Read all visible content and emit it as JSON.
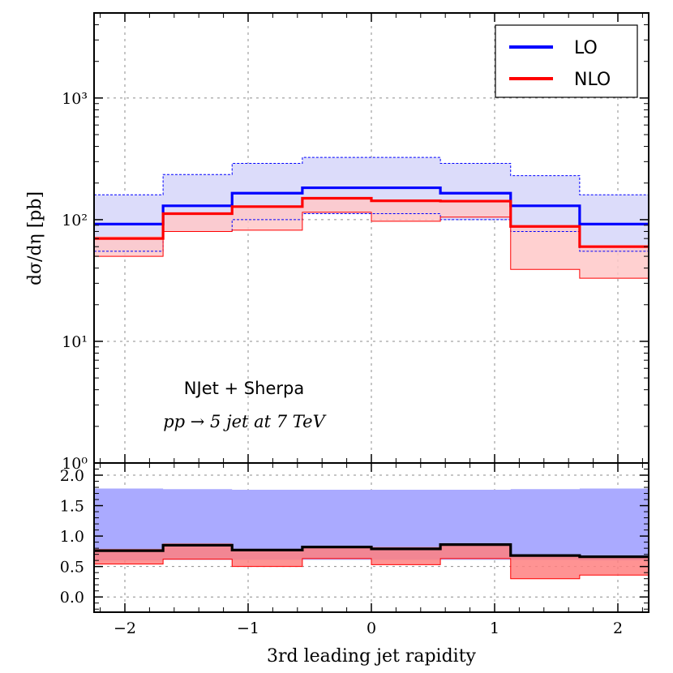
{
  "chart_data": [
    {
      "type": "line",
      "panel": "main",
      "step": true,
      "bin_edges": [
        -2.25,
        -1.69,
        -1.13,
        -0.56,
        0.0,
        0.56,
        1.13,
        1.69,
        2.25
      ],
      "ylabel": "dσ/dη [pb]",
      "yscale": "log",
      "ylim": [
        1,
        5000
      ],
      "ytick_labels": [
        "10⁰",
        "10¹",
        "10²",
        "10³"
      ],
      "grid": true,
      "legend_position": "top-right",
      "annotation_line1": "NJet + Sherpa",
      "annotation_line2": "pp → 5 jet at 7 TeV",
      "series": [
        {
          "name": "LO",
          "color": "#0000ff",
          "values": [
            92,
            130,
            165,
            183,
            183,
            165,
            130,
            92
          ],
          "band_low": [
            55,
            80,
            100,
            112,
            112,
            100,
            80,
            55
          ],
          "band_high": [
            160,
            235,
            290,
            325,
            325,
            290,
            230,
            160
          ],
          "band_color": "#dcdcfa"
        },
        {
          "name": "NLO",
          "color": "#ff0000",
          "values": [
            70,
            112,
            128,
            150,
            143,
            142,
            88,
            60
          ],
          "band_low": [
            50,
            80,
            82,
            115,
            97,
            105,
            39,
            33
          ],
          "band_high": [
            73,
            115,
            130,
            152,
            146,
            145,
            90,
            62
          ],
          "band_color": "#ffc8c8"
        }
      ]
    },
    {
      "type": "line",
      "panel": "ratio",
      "step": true,
      "bin_edges": [
        -2.25,
        -1.69,
        -1.13,
        -0.56,
        0.0,
        0.56,
        1.13,
        1.69,
        2.25
      ],
      "xlabel": "3rd leading jet rapidity",
      "xlim": [
        -2.25,
        2.25
      ],
      "xtick_labels": [
        "−2",
        "−1",
        "0",
        "1",
        "2"
      ],
      "ylim": [
        -0.25,
        2.2
      ],
      "ytick_labels": [
        "0.0",
        "0.5",
        "1.0",
        "1.5",
        "2.0"
      ],
      "grid": true,
      "series": [
        {
          "name": "LO band",
          "color": "#aaaaff",
          "band_low": [
            0.6,
            0.61,
            0.61,
            0.61,
            0.61,
            0.61,
            0.61,
            0.6
          ],
          "band_high": [
            1.78,
            1.77,
            1.76,
            1.76,
            1.76,
            1.76,
            1.77,
            1.78
          ]
        },
        {
          "name": "NLO band",
          "color": "#ff8080",
          "band_low": [
            0.54,
            0.62,
            0.5,
            0.63,
            0.53,
            0.63,
            0.3,
            0.36
          ],
          "band_high": [
            0.79,
            0.88,
            0.79,
            0.83,
            0.82,
            0.88,
            0.69,
            0.68
          ]
        },
        {
          "name": "ratio",
          "color": "#000000",
          "values": [
            0.76,
            0.85,
            0.77,
            0.82,
            0.79,
            0.86,
            0.68,
            0.66
          ]
        }
      ]
    }
  ]
}
